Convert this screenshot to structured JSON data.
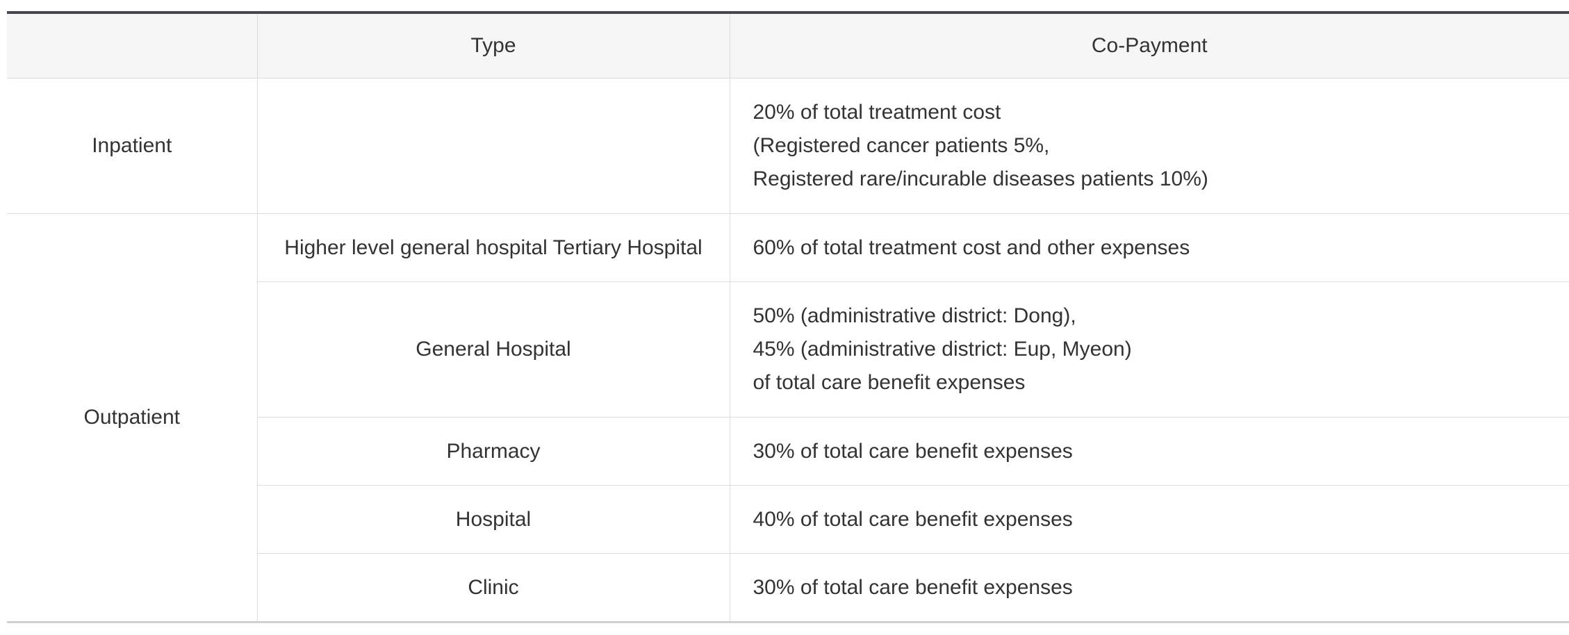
{
  "table": {
    "headers": {
      "category": "",
      "type": "Type",
      "co_payment": "Co-Payment"
    },
    "inpatient": {
      "category": "Inpatient",
      "type": "",
      "co_payment": [
        "20% of total treatment cost",
        "(Registered cancer patients 5%,",
        "Registered rare/incurable diseases patients 10%)"
      ]
    },
    "outpatient": {
      "category": "Outpatient",
      "rows": [
        {
          "type": "Higher level general hospital Tertiary Hospital",
          "co_payment": [
            "60% of total treatment cost and other expenses"
          ]
        },
        {
          "type": "General Hospital",
          "co_payment": [
            "50% (administrative district: Dong),",
            "45% (administrative district: Eup, Myeon)",
            "of total care benefit expenses"
          ]
        },
        {
          "type": "Pharmacy",
          "co_payment": [
            "30% of total care benefit expenses"
          ]
        },
        {
          "type": "Hospital",
          "co_payment": [
            "40% of total care benefit expenses"
          ]
        },
        {
          "type": "Clinic",
          "co_payment": [
            "30% of total care benefit expenses"
          ]
        }
      ]
    }
  }
}
